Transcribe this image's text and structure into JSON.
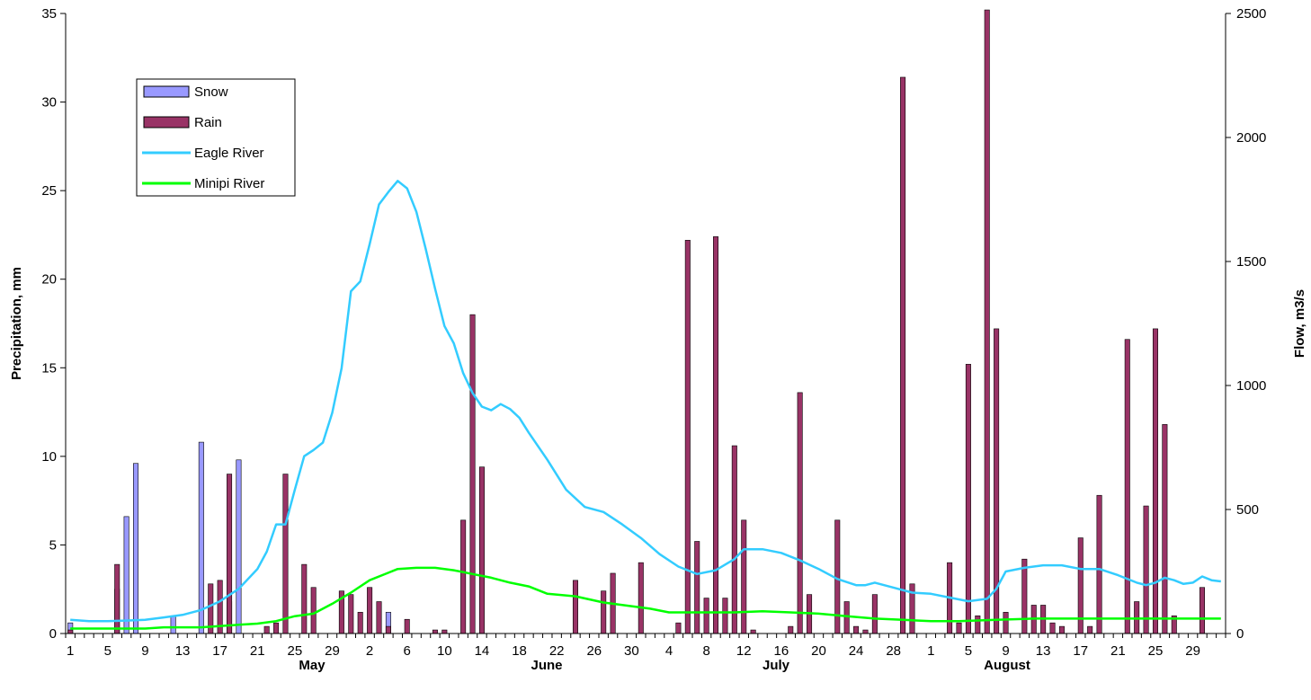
{
  "chart_data": {
    "type": "bar",
    "y_label": "Precipitation, mm",
    "y2_label": "Flow, m3/s",
    "ylim": [
      0,
      35
    ],
    "y_ticks": [
      0,
      5,
      10,
      15,
      20,
      25,
      30,
      35
    ],
    "y2lim": [
      0,
      2500
    ],
    "y2_ticks": [
      0,
      500,
      1000,
      1500,
      2000,
      2500
    ],
    "x_tick_labels": [
      "1",
      "5",
      "9",
      "13",
      "17",
      "21",
      "25",
      "29",
      "2",
      "6",
      "10",
      "14",
      "18",
      "22",
      "26",
      "30",
      "4",
      "8",
      "12",
      "16",
      "20",
      "24",
      "28",
      "1",
      "5",
      "9",
      "13",
      "17",
      "21",
      "25",
      "29"
    ],
    "months": [
      "May",
      "June",
      "July",
      "August"
    ],
    "legend": [
      "Snow",
      "Rain",
      "Eagle River",
      "Minipi River"
    ],
    "colors": {
      "snow": "#9999ff",
      "rain": "#993366",
      "eagle": "#33ccff",
      "minipi": "#00ff00",
      "axis": "#000000"
    },
    "snow": [
      {
        "day": 1,
        "value": 0.6
      },
      {
        "day": 6,
        "value": 2.5
      },
      {
        "day": 7,
        "value": 6.6
      },
      {
        "day": 8,
        "value": 9.6
      },
      {
        "day": 12,
        "value": 1.0
      },
      {
        "day": 15,
        "value": 10.8
      },
      {
        "day": 18,
        "value": 1.8
      },
      {
        "day": 19,
        "value": 9.8
      },
      {
        "day": 35,
        "value": 1.2
      }
    ],
    "rain": [
      {
        "day": 1,
        "value": 0.2
      },
      {
        "day": 6,
        "value": 3.9
      },
      {
        "day": 16,
        "value": 2.8
      },
      {
        "day": 17,
        "value": 3.0
      },
      {
        "day": 18,
        "value": 9.0
      },
      {
        "day": 22,
        "value": 0.4
      },
      {
        "day": 23,
        "value": 0.6
      },
      {
        "day": 24,
        "value": 9.0
      },
      {
        "day": 26,
        "value": 3.9
      },
      {
        "day": 27,
        "value": 2.6
      },
      {
        "day": 30,
        "value": 2.4
      },
      {
        "day": 31,
        "value": 2.2
      },
      {
        "day": 32,
        "value": 1.2
      },
      {
        "day": 33,
        "value": 2.6
      },
      {
        "day": 34,
        "value": 1.8
      },
      {
        "day": 35,
        "value": 0.4
      },
      {
        "day": 37,
        "value": 0.8
      },
      {
        "day": 40,
        "value": 0.2
      },
      {
        "day": 41,
        "value": 0.2
      },
      {
        "day": 43,
        "value": 6.4
      },
      {
        "day": 44,
        "value": 18.0
      },
      {
        "day": 45,
        "value": 9.4
      },
      {
        "day": 55,
        "value": 3.0
      },
      {
        "day": 58,
        "value": 2.4
      },
      {
        "day": 59,
        "value": 3.4
      },
      {
        "day": 62,
        "value": 4.0
      },
      {
        "day": 66,
        "value": 0.6
      },
      {
        "day": 67,
        "value": 22.2
      },
      {
        "day": 68,
        "value": 5.2
      },
      {
        "day": 69,
        "value": 2.0
      },
      {
        "day": 70,
        "value": 22.4
      },
      {
        "day": 71,
        "value": 2.0
      },
      {
        "day": 72,
        "value": 10.6
      },
      {
        "day": 73,
        "value": 6.4
      },
      {
        "day": 74,
        "value": 0.2
      },
      {
        "day": 78,
        "value": 0.4
      },
      {
        "day": 79,
        "value": 13.6
      },
      {
        "day": 80,
        "value": 2.2
      },
      {
        "day": 83,
        "value": 6.4
      },
      {
        "day": 84,
        "value": 1.8
      },
      {
        "day": 85,
        "value": 0.4
      },
      {
        "day": 86,
        "value": 0.2
      },
      {
        "day": 87,
        "value": 2.2
      },
      {
        "day": 90,
        "value": 31.4
      },
      {
        "day": 91,
        "value": 2.8
      },
      {
        "day": 95,
        "value": 4.0
      },
      {
        "day": 96,
        "value": 0.6
      },
      {
        "day": 97,
        "value": 15.2
      },
      {
        "day": 98,
        "value": 1.0
      },
      {
        "day": 99,
        "value": 35.2
      },
      {
        "day": 100,
        "value": 17.2
      },
      {
        "day": 101,
        "value": 1.2
      },
      {
        "day": 103,
        "value": 4.2
      },
      {
        "day": 104,
        "value": 1.6
      },
      {
        "day": 105,
        "value": 1.6
      },
      {
        "day": 106,
        "value": 0.6
      },
      {
        "day": 107,
        "value": 0.4
      },
      {
        "day": 109,
        "value": 5.4
      },
      {
        "day": 110,
        "value": 0.4
      },
      {
        "day": 111,
        "value": 7.8
      },
      {
        "day": 114,
        "value": 16.6
      },
      {
        "day": 115,
        "value": 1.8
      },
      {
        "day": 116,
        "value": 7.2
      },
      {
        "day": 117,
        "value": 17.2
      },
      {
        "day": 118,
        "value": 11.8
      },
      {
        "day": 119,
        "value": 1.0
      },
      {
        "day": 122,
        "value": 2.6
      }
    ],
    "eagle_river": [
      [
        1,
        55
      ],
      [
        3,
        50
      ],
      [
        5,
        50
      ],
      [
        7,
        52
      ],
      [
        9,
        55
      ],
      [
        11,
        65
      ],
      [
        13,
        75
      ],
      [
        15,
        95
      ],
      [
        17,
        130
      ],
      [
        19,
        180
      ],
      [
        21,
        260
      ],
      [
        22,
        330
      ],
      [
        23,
        440
      ],
      [
        24,
        440
      ],
      [
        25,
        580
      ],
      [
        26,
        715
      ],
      [
        27,
        740
      ],
      [
        28,
        770
      ],
      [
        29,
        890
      ],
      [
        30,
        1070
      ],
      [
        31,
        1380
      ],
      [
        32,
        1420
      ],
      [
        33,
        1570
      ],
      [
        34,
        1730
      ],
      [
        35,
        1780
      ],
      [
        36,
        1825
      ],
      [
        37,
        1795
      ],
      [
        38,
        1700
      ],
      [
        39,
        1550
      ],
      [
        40,
        1390
      ],
      [
        41,
        1240
      ],
      [
        42,
        1170
      ],
      [
        43,
        1050
      ],
      [
        44,
        970
      ],
      [
        45,
        915
      ],
      [
        46,
        900
      ],
      [
        47,
        925
      ],
      [
        48,
        905
      ],
      [
        49,
        870
      ],
      [
        50,
        810
      ],
      [
        52,
        700
      ],
      [
        54,
        580
      ],
      [
        56,
        510
      ],
      [
        58,
        490
      ],
      [
        60,
        440
      ],
      [
        62,
        385
      ],
      [
        64,
        320
      ],
      [
        66,
        270
      ],
      [
        68,
        240
      ],
      [
        70,
        255
      ],
      [
        72,
        300
      ],
      [
        73,
        340
      ],
      [
        75,
        340
      ],
      [
        77,
        325
      ],
      [
        79,
        295
      ],
      [
        81,
        260
      ],
      [
        83,
        220
      ],
      [
        85,
        195
      ],
      [
        86,
        195
      ],
      [
        87,
        205
      ],
      [
        89,
        185
      ],
      [
        91,
        165
      ],
      [
        93,
        160
      ],
      [
        95,
        145
      ],
      [
        97,
        130
      ],
      [
        99,
        140
      ],
      [
        100,
        180
      ],
      [
        101,
        250
      ],
      [
        103,
        265
      ],
      [
        105,
        275
      ],
      [
        107,
        275
      ],
      [
        109,
        260
      ],
      [
        111,
        260
      ],
      [
        113,
        235
      ],
      [
        115,
        205
      ],
      [
        116,
        195
      ],
      [
        117,
        205
      ],
      [
        118,
        225
      ],
      [
        119,
        215
      ],
      [
        120,
        200
      ],
      [
        121,
        205
      ],
      [
        122,
        230
      ],
      [
        123,
        215
      ],
      [
        124,
        210
      ]
    ],
    "minipi_river": [
      [
        1,
        20
      ],
      [
        5,
        20
      ],
      [
        9,
        20
      ],
      [
        11,
        25
      ],
      [
        15,
        25
      ],
      [
        19,
        35
      ],
      [
        21,
        40
      ],
      [
        23,
        50
      ],
      [
        25,
        70
      ],
      [
        27,
        80
      ],
      [
        29,
        120
      ],
      [
        31,
        165
      ],
      [
        33,
        215
      ],
      [
        35,
        245
      ],
      [
        36,
        260
      ],
      [
        38,
        265
      ],
      [
        40,
        265
      ],
      [
        42,
        255
      ],
      [
        44,
        240
      ],
      [
        46,
        225
      ],
      [
        48,
        205
      ],
      [
        50,
        190
      ],
      [
        52,
        160
      ],
      [
        55,
        150
      ],
      [
        58,
        125
      ],
      [
        61,
        110
      ],
      [
        63,
        100
      ],
      [
        65,
        85
      ],
      [
        68,
        85
      ],
      [
        72,
        85
      ],
      [
        75,
        90
      ],
      [
        78,
        85
      ],
      [
        81,
        80
      ],
      [
        84,
        70
      ],
      [
        87,
        60
      ],
      [
        90,
        55
      ],
      [
        93,
        50
      ],
      [
        96,
        50
      ],
      [
        100,
        55
      ],
      [
        104,
        60
      ],
      [
        108,
        60
      ],
      [
        112,
        60
      ],
      [
        116,
        60
      ],
      [
        120,
        60
      ],
      [
        124,
        60
      ]
    ]
  }
}
